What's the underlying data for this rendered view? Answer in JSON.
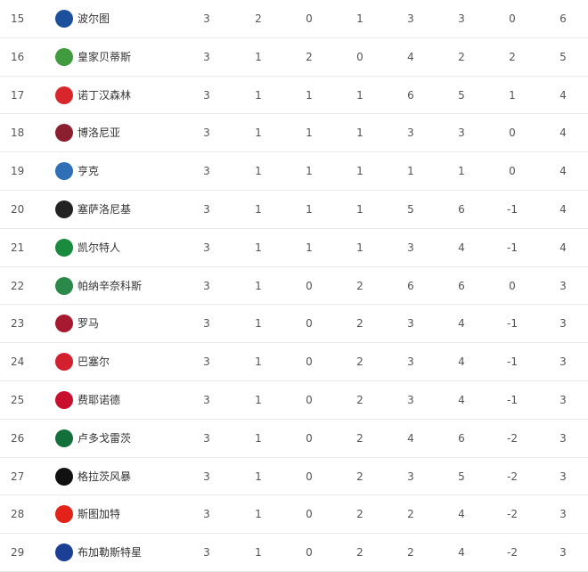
{
  "rows": [
    {
      "rank": "15",
      "team": "波尔图",
      "logo_color": "#1c4f9c",
      "stats": [
        "3",
        "2",
        "0",
        "1",
        "3",
        "3",
        "0",
        "6"
      ]
    },
    {
      "rank": "16",
      "team": "皇家贝蒂斯",
      "logo_color": "#3f9b3c",
      "stats": [
        "3",
        "1",
        "2",
        "0",
        "4",
        "2",
        "2",
        "5"
      ]
    },
    {
      "rank": "17",
      "team": "诺丁汉森林",
      "logo_color": "#d9262c",
      "stats": [
        "3",
        "1",
        "1",
        "1",
        "6",
        "5",
        "1",
        "4"
      ]
    },
    {
      "rank": "18",
      "team": "博洛尼亚",
      "logo_color": "#8b1f2f",
      "stats": [
        "3",
        "1",
        "1",
        "1",
        "3",
        "3",
        "0",
        "4"
      ]
    },
    {
      "rank": "19",
      "team": "亨克",
      "logo_color": "#2f6fb8",
      "stats": [
        "3",
        "1",
        "1",
        "1",
        "1",
        "1",
        "0",
        "4"
      ]
    },
    {
      "rank": "20",
      "team": "塞萨洛尼基",
      "logo_color": "#222222",
      "stats": [
        "3",
        "1",
        "1",
        "1",
        "5",
        "6",
        "-1",
        "4"
      ]
    },
    {
      "rank": "21",
      "team": "凯尔特人",
      "logo_color": "#1a8a3f",
      "stats": [
        "3",
        "1",
        "1",
        "1",
        "3",
        "4",
        "-1",
        "4"
      ]
    },
    {
      "rank": "22",
      "team": "帕纳辛奈科斯",
      "logo_color": "#2b8a4a",
      "stats": [
        "3",
        "1",
        "0",
        "2",
        "6",
        "6",
        "0",
        "3"
      ]
    },
    {
      "rank": "23",
      "team": "罗马",
      "logo_color": "#a6192e",
      "stats": [
        "3",
        "1",
        "0",
        "2",
        "3",
        "4",
        "-1",
        "3"
      ]
    },
    {
      "rank": "24",
      "team": "巴塞尔",
      "logo_color": "#d3202f",
      "stats": [
        "3",
        "1",
        "0",
        "2",
        "3",
        "4",
        "-1",
        "3"
      ]
    },
    {
      "rank": "25",
      "team": "费耶诺德",
      "logo_color": "#c8102e",
      "stats": [
        "3",
        "1",
        "0",
        "2",
        "3",
        "4",
        "-1",
        "3"
      ]
    },
    {
      "rank": "26",
      "team": "卢多戈雷茨",
      "logo_color": "#14703a",
      "stats": [
        "3",
        "1",
        "0",
        "2",
        "4",
        "6",
        "-2",
        "3"
      ]
    },
    {
      "rank": "27",
      "team": "格拉茨风暴",
      "logo_color": "#111111",
      "stats": [
        "3",
        "1",
        "0",
        "2",
        "3",
        "5",
        "-2",
        "3"
      ]
    },
    {
      "rank": "28",
      "team": "斯图加特",
      "logo_color": "#e32219",
      "stats": [
        "3",
        "1",
        "0",
        "2",
        "2",
        "4",
        "-2",
        "3"
      ]
    },
    {
      "rank": "29",
      "team": "布加勒斯特星",
      "logo_color": "#1b3f94",
      "stats": [
        "3",
        "1",
        "0",
        "2",
        "2",
        "4",
        "-2",
        "3"
      ]
    }
  ]
}
